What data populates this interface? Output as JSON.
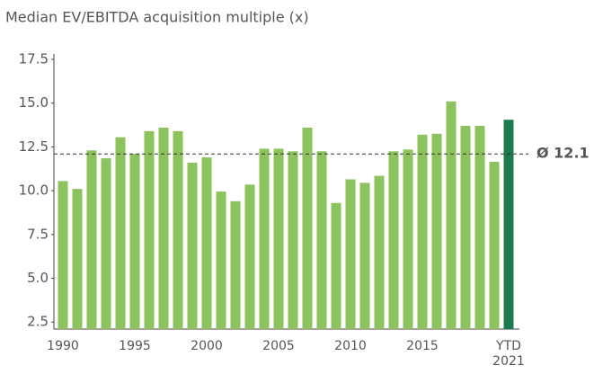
{
  "chart_data": {
    "type": "bar",
    "title": "Median EV/EBITDA acquisition multiple (x)",
    "categories": [
      "1990",
      null,
      null,
      null,
      null,
      "1995",
      null,
      null,
      null,
      null,
      "2000",
      null,
      null,
      null,
      null,
      "2005",
      null,
      null,
      null,
      null,
      "2010",
      null,
      null,
      null,
      null,
      "2015",
      null,
      null,
      null,
      null,
      null,
      "YTD 2021"
    ],
    "values": [
      10.55,
      10.1,
      12.3,
      11.85,
      13.05,
      12.1,
      13.4,
      13.6,
      13.4,
      11.6,
      11.9,
      9.95,
      9.4,
      10.35,
      12.4,
      12.4,
      12.25,
      13.6,
      12.25,
      9.3,
      10.65,
      10.45,
      10.85,
      12.25,
      12.35,
      13.2,
      13.25,
      15.1,
      13.7,
      13.7,
      11.65,
      14.05
    ],
    "colors": [
      "#8cc35e",
      "#8cc35e",
      "#8cc35e",
      "#8cc35e",
      "#8cc35e",
      "#8cc35e",
      "#8cc35e",
      "#8cc35e",
      "#8cc35e",
      "#8cc35e",
      "#8cc35e",
      "#8cc35e",
      "#8cc35e",
      "#8cc35e",
      "#8cc35e",
      "#8cc35e",
      "#8cc35e",
      "#8cc35e",
      "#8cc35e",
      "#8cc35e",
      "#8cc35e",
      "#8cc35e",
      "#8cc35e",
      "#8cc35e",
      "#8cc35e",
      "#8cc35e",
      "#8cc35e",
      "#8cc35e",
      "#8cc35e",
      "#8cc35e",
      "#8cc35e",
      "#1c7a4e"
    ],
    "ylim": [
      2.1,
      17.5
    ],
    "yticks": [
      2.5,
      {
        "value": 5,
        "label": "5.0"
      },
      7.5,
      {
        "value": 10,
        "label": "10.0"
      },
      12.5,
      {
        "value": 15,
        "label": "15.0"
      },
      17.5
    ],
    "average": {
      "value": 12.1,
      "label": "Ø 12.1",
      "color": "#0e5c37"
    },
    "grid": false
  }
}
